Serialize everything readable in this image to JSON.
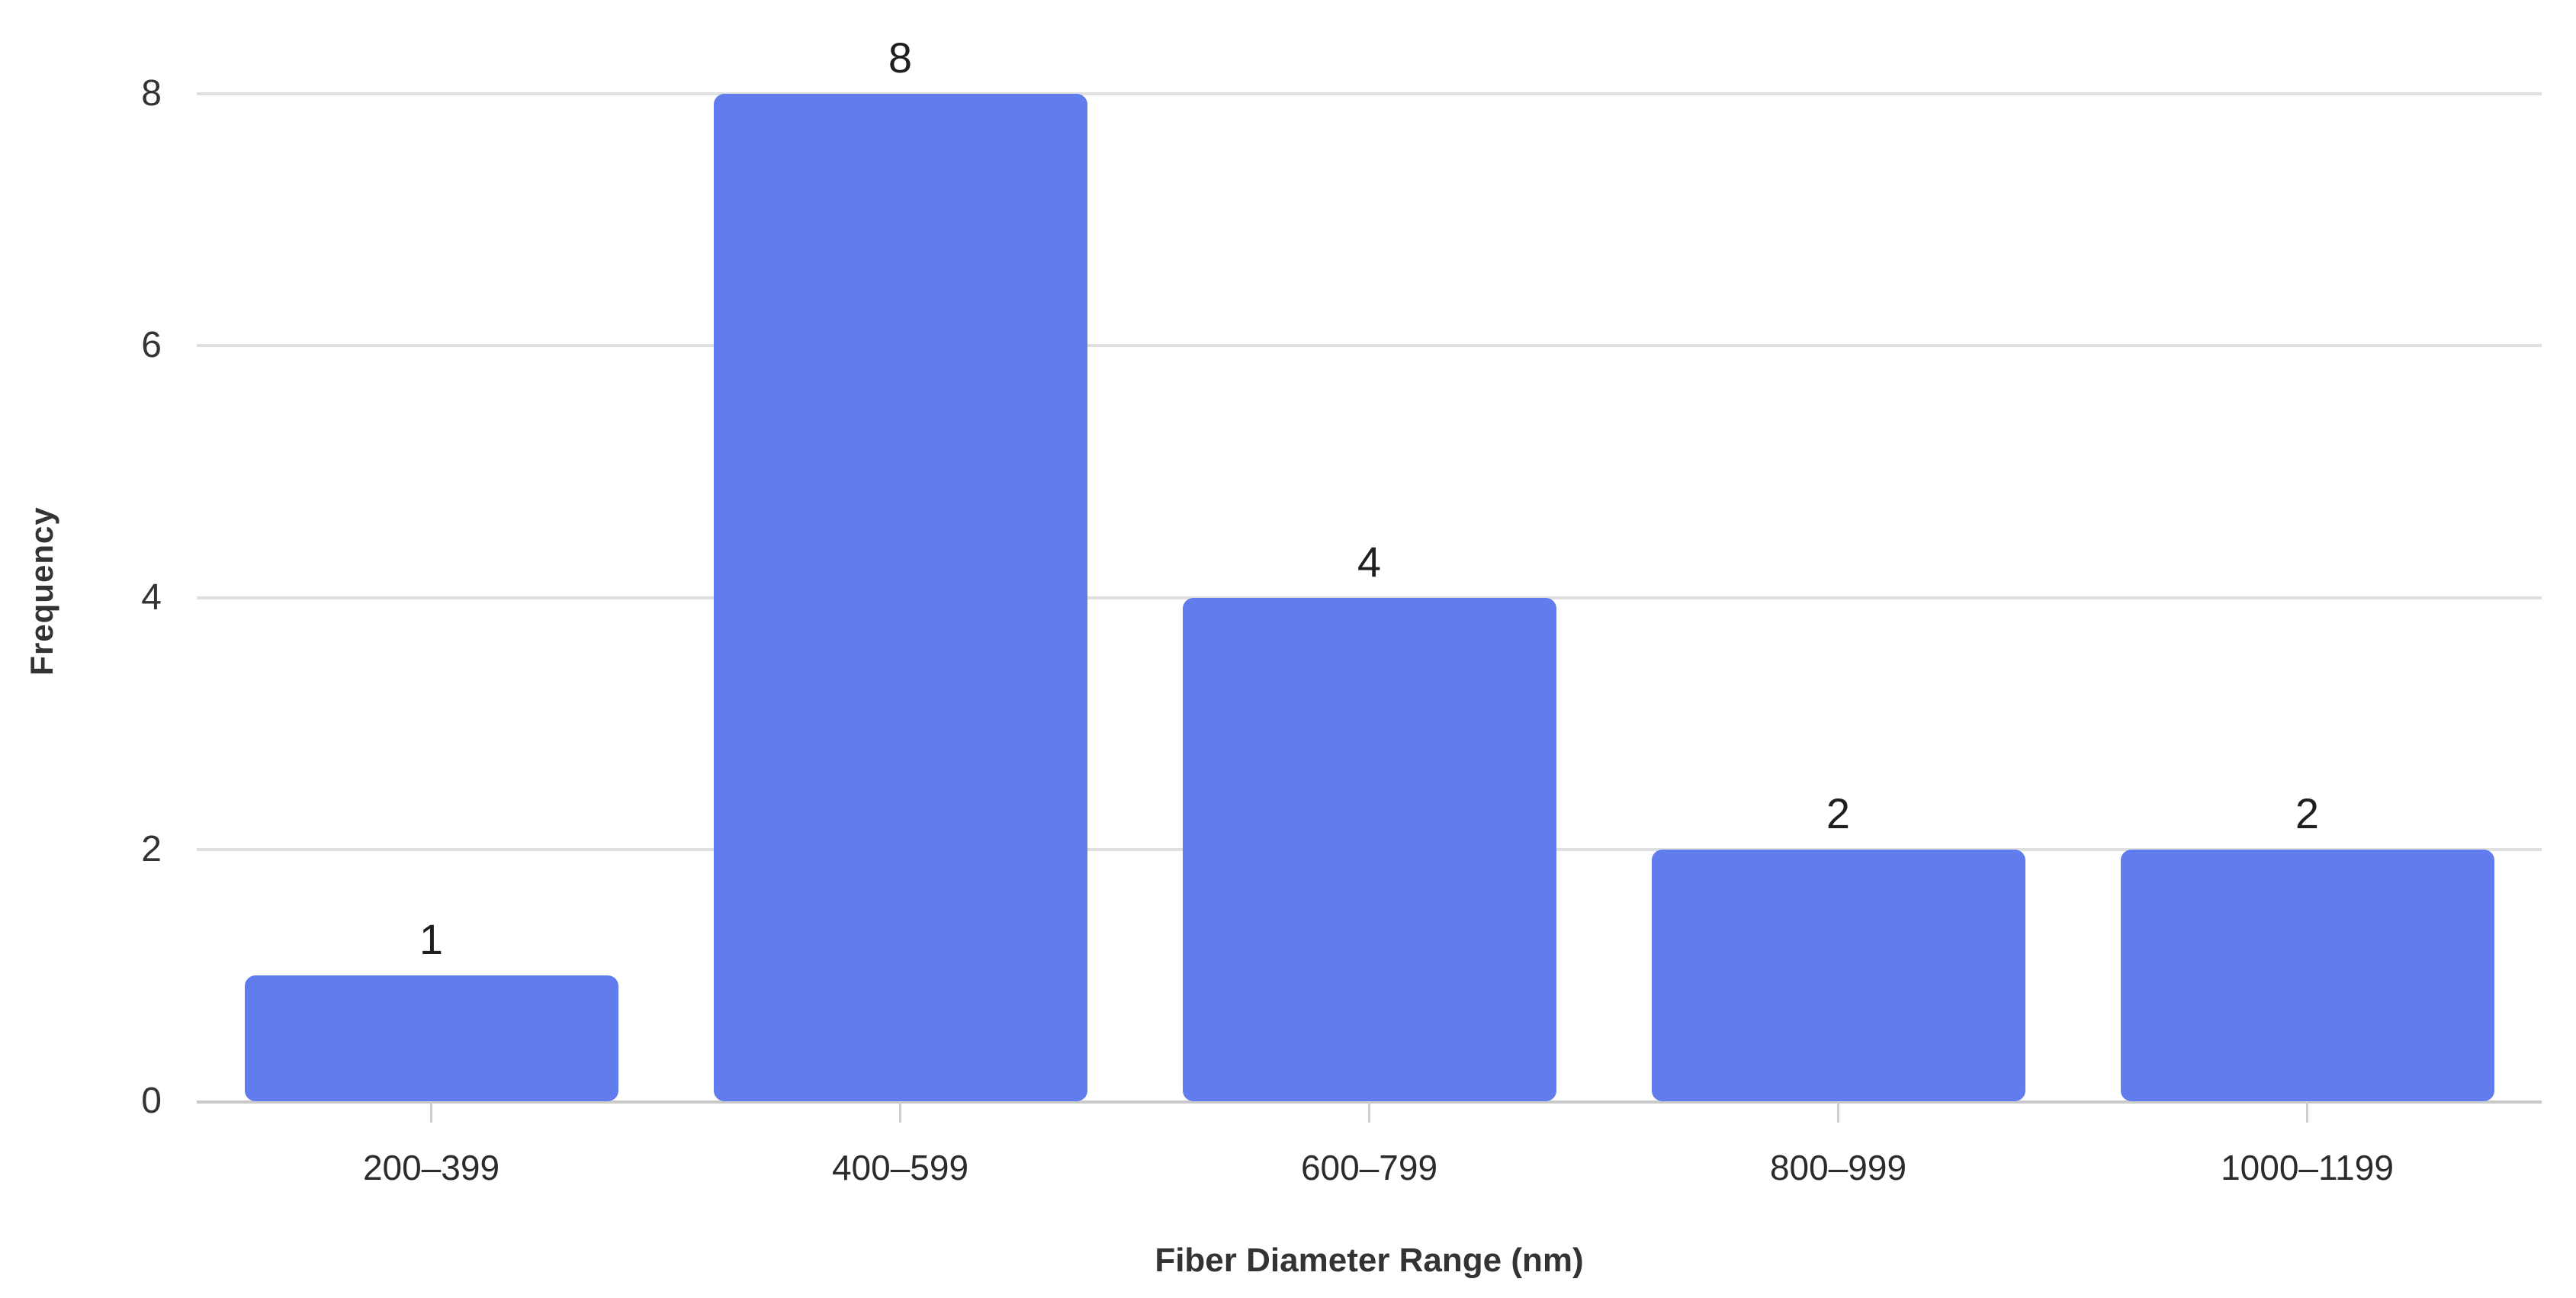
{
  "chart_data": {
    "type": "bar",
    "title": "",
    "xlabel": "Fiber Diameter Range (nm)",
    "ylabel": "Frequency",
    "categories": [
      "200–399",
      "400–599",
      "600–799",
      "800–999",
      "1000–1199"
    ],
    "values": [
      1,
      8,
      4,
      2,
      2
    ],
    "bar_labels": [
      "1",
      "8",
      "4",
      "2",
      "2"
    ],
    "ylim": [
      0,
      8
    ],
    "yticks": [
      0,
      2,
      4,
      6,
      8
    ],
    "grid": "horizontal-only",
    "legend_position": "none",
    "colors": {
      "bar": "#617CEC",
      "gridline": "#e0e0e0",
      "axis_line": "#c9c9c9",
      "tick_mark": "#cfcfcf",
      "tick_text": "#333333",
      "bar_label_text": "#1f1f1f",
      "axis_title_text": "#333333",
      "background": "#ffffff"
    }
  }
}
